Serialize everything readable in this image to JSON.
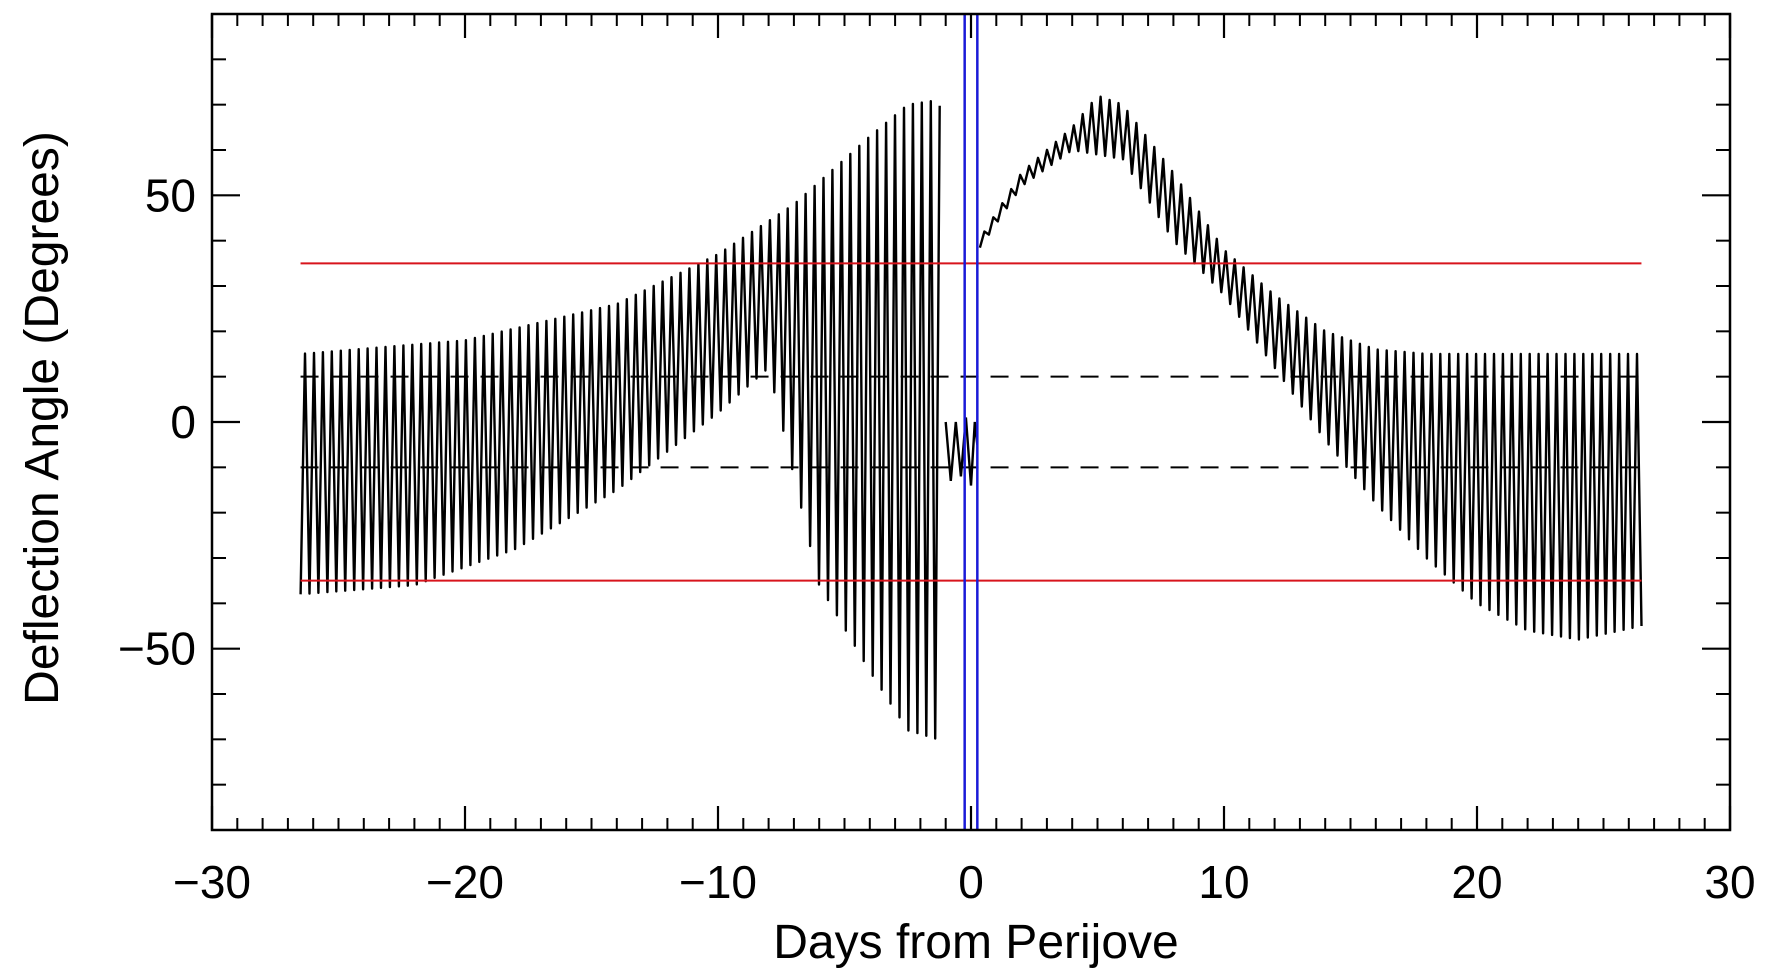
{
  "chart_data": {
    "type": "line",
    "title": "",
    "xlabel": "Days from Perijove",
    "ylabel": "Deflection Angle (Degrees)",
    "xlim": [
      -30,
      30
    ],
    "ylim": [
      -90,
      90
    ],
    "x_ticks": [
      -30,
      -20,
      -10,
      0,
      10,
      20,
      30
    ],
    "x_tick_labels": [
      "−30",
      "−20",
      "−10",
      "0",
      "10",
      "20",
      "30"
    ],
    "y_ticks": [
      -50,
      0,
      50
    ],
    "y_tick_labels": [
      "−50",
      "0",
      "50"
    ],
    "x_minor_step": 1,
    "y_minor_step": 10,
    "grid": false,
    "colors": {
      "series": "#000000",
      "limit": "#d8141c",
      "marker": "#1a1ad8",
      "threshold": "#000000"
    },
    "series": [
      {
        "style": "solid",
        "x_range": [
          -26.5,
          26.5
        ],
        "gap": [
          -1.2,
          0.3
        ],
        "segment_before_gap": {
          "x": [
            -1.0,
            -0.8,
            -0.6,
            -0.4,
            -0.2,
            0.0,
            0.15,
            0.25
          ],
          "y": [
            0,
            -13,
            0,
            -12,
            1,
            -14,
            0,
            -5
          ]
        },
        "upper_envelope": {
          "x": [
            -26.5,
            -20,
            -14,
            -10,
            -7,
            -4,
            -2.5,
            -1.3,
            0.3,
            2,
            4,
            5,
            6,
            8,
            10,
            12,
            14,
            16,
            18,
            22,
            26.5
          ],
          "y": [
            15,
            18,
            26,
            37,
            48,
            63,
            70,
            71,
            40,
            55,
            65,
            72,
            70,
            55,
            38,
            28,
            20,
            16,
            15,
            15,
            15
          ]
        },
        "lower_envelope": {
          "x": [
            -26.5,
            -22,
            -18,
            -14,
            -10,
            -8,
            -6,
            -4,
            -2.5,
            -1.3,
            0.3,
            2,
            4,
            6,
            8,
            10,
            12,
            14,
            16,
            18,
            20,
            22,
            24,
            26.5
          ],
          "y": [
            -38,
            -36,
            -28,
            -15,
            2,
            12,
            -36,
            -55,
            -68,
            -70,
            38,
            52,
            60,
            58,
            40,
            28,
            12,
            -4,
            -18,
            -30,
            -40,
            -46,
            -48,
            -45
          ]
        }
      }
    ],
    "horizontal_lines": [
      {
        "y": 35,
        "x_range": [
          -26.5,
          26.5
        ],
        "style": "solid",
        "color": "#d8141c"
      },
      {
        "y": -35,
        "x_range": [
          -26.5,
          26.5
        ],
        "style": "solid",
        "color": "#d8141c"
      },
      {
        "y": 10,
        "x_range": [
          -26.5,
          26.5
        ],
        "style": "dashed",
        "color": "#000000"
      },
      {
        "y": -10,
        "x_range": [
          -26.5,
          26.5
        ],
        "style": "dashed",
        "color": "#000000"
      }
    ],
    "vertical_lines": [
      {
        "x": -0.25,
        "color": "#1a1ad8"
      },
      {
        "x": 0.25,
        "color": "#1a1ad8"
      }
    ]
  }
}
